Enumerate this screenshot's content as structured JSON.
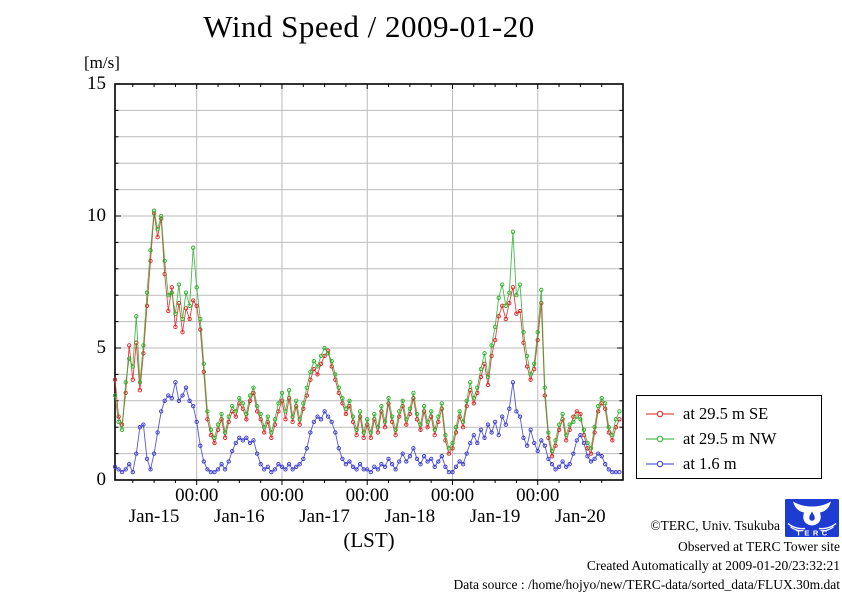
{
  "footer": {
    "copyright": "©TERC, Univ. Tsukuba",
    "observed": "Observed at TERC Tower site",
    "created": "Created Automatically at 2009-01-20/23:32:21",
    "datasource": "Data source : /home/hojyo/new/TERC-data/sorted_data/FLUX.30m.dat",
    "logo_text": "TERC"
  },
  "chart_data": {
    "type": "line",
    "title": "Wind Speed / 2009-01-20",
    "xlabel": "(LST)",
    "ylabel": "[m/s]",
    "ylim": [
      0,
      15
    ],
    "grid": true,
    "legend_position": "outside-right-bottom",
    "x_unit": "hours since 2009-01-15 00:00 LST",
    "x_start_hour": 1,
    "x_step_hours": 1,
    "x_axis_end_hour": 144,
    "x_major_tick_hours": [
      24,
      48,
      72,
      96,
      120
    ],
    "x_major_tick_label": "00:00",
    "x_minor_tick_step_hours": 6,
    "x_day_labels": [
      "Jan-15",
      "Jan-16",
      "Jan-17",
      "Jan-18",
      "Jan-19",
      "Jan-20"
    ],
    "y_major_ticks": [
      0,
      5,
      10,
      15
    ],
    "y_minor_step": 1,
    "series": [
      {
        "name": "at 29.5 m SE",
        "color": "#dd2222",
        "marker": "open-circle",
        "values": [
          3.8,
          2.4,
          2.1,
          3.3,
          5.1,
          3.8,
          5.2,
          3.4,
          4.8,
          6.6,
          8.3,
          10.1,
          9.2,
          9.9,
          7.8,
          6.4,
          7.3,
          5.8,
          6.7,
          5.6,
          6.5,
          6.1,
          6.8,
          6.6,
          5.7,
          4.1,
          2.3,
          1.7,
          1.4,
          1.9,
          2.3,
          1.6,
          2.2,
          2.6,
          2.4,
          2.9,
          2.7,
          2.3,
          3.0,
          3.3,
          2.6,
          2.3,
          1.8,
          2.2,
          1.6,
          2.1,
          2.6,
          3.0,
          2.3,
          3.1,
          2.2,
          2.8,
          2.1,
          2.7,
          3.2,
          3.8,
          4.2,
          4.0,
          4.4,
          4.7,
          4.9,
          4.3,
          3.8,
          3.3,
          2.9,
          2.5,
          2.8,
          2.2,
          1.7,
          2.4,
          1.6,
          2.1,
          1.6,
          2.3,
          1.8,
          2.6,
          2.0,
          2.9,
          2.2,
          1.7,
          2.4,
          2.8,
          2.1,
          2.5,
          3.1,
          2.3,
          1.9,
          2.6,
          2.0,
          2.4,
          1.7,
          2.2,
          2.7,
          1.5,
          1.0,
          1.2,
          1.8,
          2.4,
          2.0,
          2.8,
          3.4,
          2.9,
          3.3,
          3.9,
          4.4,
          3.6,
          4.7,
          5.3,
          6.2,
          6.6,
          6.1,
          6.7,
          7.3,
          6.3,
          6.4,
          5.2,
          4.3,
          3.8,
          4.2,
          5.3,
          6.7,
          3.2,
          1.6,
          0.9,
          1.3,
          1.9,
          2.3,
          1.5,
          1.9,
          2.4,
          2.6,
          2.5,
          1.7,
          1.2,
          1.0,
          1.8,
          2.6,
          2.9,
          2.7,
          1.8,
          1.5,
          2.0,
          2.3
        ]
      },
      {
        "name": "at 29.5 m NW",
        "color": "#28b028",
        "marker": "open-circle",
        "values": [
          3.2,
          2.2,
          1.9,
          3.7,
          4.6,
          4.3,
          6.2,
          3.7,
          5.1,
          7.1,
          8.7,
          10.2,
          9.5,
          10.0,
          8.3,
          7.0,
          7.1,
          6.3,
          7.4,
          6.1,
          7.1,
          6.6,
          8.8,
          7.3,
          6.1,
          4.4,
          2.6,
          1.9,
          1.6,
          2.1,
          2.5,
          1.8,
          2.4,
          2.8,
          2.6,
          3.1,
          2.9,
          2.5,
          3.2,
          3.5,
          2.8,
          2.5,
          2.0,
          2.4,
          1.8,
          2.3,
          2.9,
          3.3,
          2.6,
          3.4,
          2.4,
          3.0,
          2.3,
          2.9,
          3.5,
          4.1,
          4.5,
          4.3,
          4.7,
          5.0,
          4.8,
          4.5,
          4.0,
          3.5,
          3.1,
          2.7,
          3.0,
          2.4,
          1.9,
          2.6,
          1.8,
          2.3,
          1.8,
          2.5,
          2.0,
          2.8,
          2.2,
          3.1,
          2.4,
          1.9,
          2.6,
          3.0,
          2.3,
          2.7,
          3.3,
          2.5,
          2.1,
          2.8,
          2.2,
          2.6,
          1.9,
          2.4,
          2.9,
          1.7,
          1.2,
          1.4,
          2.0,
          2.6,
          2.2,
          3.0,
          3.7,
          3.1,
          3.5,
          4.2,
          4.8,
          3.9,
          5.1,
          5.8,
          6.9,
          7.4,
          6.6,
          7.1,
          9.4,
          7.0,
          7.4,
          5.6,
          4.7,
          4.0,
          4.4,
          5.6,
          7.2,
          3.5,
          1.8,
          1.1,
          1.5,
          2.1,
          2.5,
          1.7,
          2.1,
          2.2,
          2.4,
          2.3,
          1.9,
          1.4,
          1.2,
          2.0,
          2.8,
          3.1,
          2.9,
          2.0,
          1.7,
          2.3,
          2.6
        ]
      },
      {
        "name": "at 1.6 m",
        "color": "#3838cc",
        "marker": "open-circle",
        "values": [
          0.5,
          0.4,
          0.3,
          0.4,
          0.6,
          0.3,
          1.0,
          2.0,
          2.1,
          0.8,
          0.4,
          1.0,
          1.8,
          2.6,
          3.0,
          3.2,
          3.1,
          3.7,
          3.0,
          3.2,
          3.5,
          3.0,
          2.8,
          2.2,
          1.3,
          0.7,
          0.4,
          0.3,
          0.3,
          0.4,
          0.6,
          0.4,
          0.7,
          1.1,
          1.4,
          1.6,
          1.5,
          1.6,
          1.4,
          1.5,
          1.0,
          0.6,
          0.4,
          0.5,
          0.3,
          0.4,
          0.6,
          0.5,
          0.4,
          0.6,
          0.4,
          0.5,
          0.6,
          0.8,
          1.2,
          1.8,
          2.2,
          2.4,
          2.3,
          2.6,
          2.4,
          2.2,
          1.8,
          1.2,
          0.8,
          0.6,
          0.7,
          0.5,
          0.4,
          0.6,
          0.4,
          0.4,
          0.3,
          0.5,
          0.4,
          0.6,
          0.5,
          0.8,
          0.6,
          0.4,
          0.7,
          1.0,
          0.7,
          0.9,
          1.2,
          0.8,
          0.6,
          0.9,
          0.7,
          0.8,
          0.5,
          0.7,
          0.9,
          0.5,
          0.3,
          0.3,
          0.5,
          0.7,
          0.6,
          1.0,
          1.4,
          1.7,
          1.4,
          1.9,
          1.6,
          2.1,
          1.8,
          2.2,
          1.7,
          2.4,
          2.1,
          2.7,
          3.7,
          2.6,
          2.4,
          1.6,
          1.3,
          1.9,
          1.4,
          1.1,
          1.5,
          1.3,
          0.8,
          0.6,
          0.4,
          0.5,
          0.7,
          0.5,
          0.6,
          1.0,
          1.5,
          1.7,
          1.4,
          0.9,
          0.7,
          0.8,
          1.0,
          0.9,
          0.6,
          0.4,
          0.3,
          0.3,
          0.3
        ]
      }
    ]
  }
}
